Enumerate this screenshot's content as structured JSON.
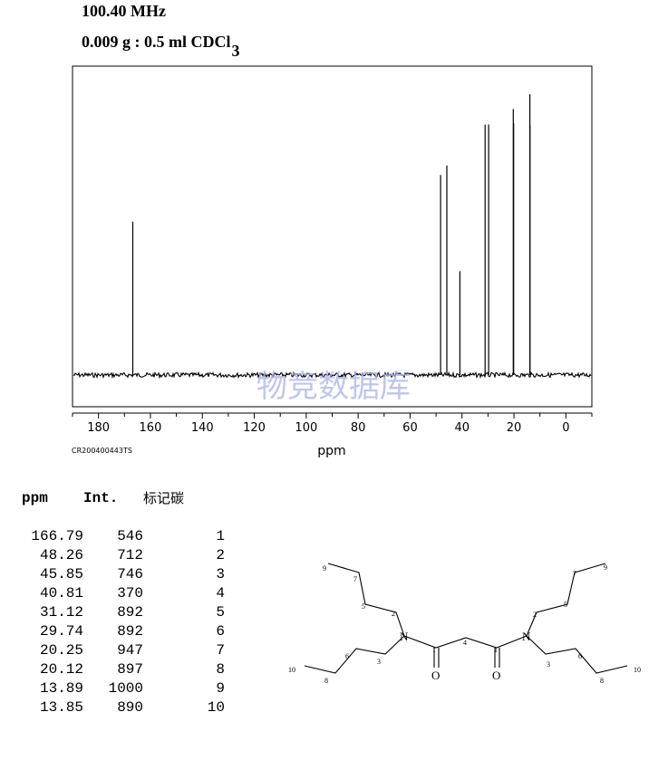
{
  "header": {
    "frequency": "100.40 MHz",
    "solvent_prefix": "0.009 g : 0.5 ml CDCl",
    "solvent_subscript": "3"
  },
  "chart_data": {
    "type": "line",
    "title": "",
    "xlabel": "ppm",
    "ylabel": "",
    "xlim": [
      190,
      -10
    ],
    "x_reversed": true,
    "xticks": [
      180,
      160,
      140,
      120,
      100,
      80,
      60,
      40,
      20,
      0
    ],
    "grid": false,
    "series": [
      {
        "x": [
          166.79,
          48.26,
          45.85,
          40.81,
          31.12,
          29.74,
          20.25,
          20.12,
          13.89,
          13.85
        ],
        "values": [
          546,
          712,
          746,
          370,
          892,
          892,
          947,
          897,
          1000,
          890
        ]
      }
    ],
    "ylim": [
      -85,
      1000
    ],
    "spectrum_id": "CR200400443TS",
    "watermark": "物竞数据库"
  },
  "table": {
    "headers": [
      "ppm",
      "Int.",
      "标记碳"
    ],
    "rows": [
      [
        "166.79",
        "546",
        "1"
      ],
      [
        "48.26",
        "712",
        "2"
      ],
      [
        "45.85",
        "746",
        "3"
      ],
      [
        "40.81",
        "370",
        "4"
      ],
      [
        "31.12",
        "892",
        "5"
      ],
      [
        "29.74",
        "892",
        "6"
      ],
      [
        "20.25",
        "947",
        "7"
      ],
      [
        "20.12",
        "897",
        "8"
      ],
      [
        "13.89",
        "1000",
        "9"
      ],
      [
        "13.85",
        "890",
        "10"
      ]
    ]
  },
  "structure": {
    "atoms": [
      "N",
      "N",
      "O",
      "O"
    ],
    "locants": [
      "9",
      "7",
      "5",
      "2",
      "1",
      "4",
      "1",
      "2",
      "5",
      "7",
      "9",
      "10",
      "8",
      "6",
      "3",
      "3",
      "6",
      "8",
      "10"
    ]
  }
}
